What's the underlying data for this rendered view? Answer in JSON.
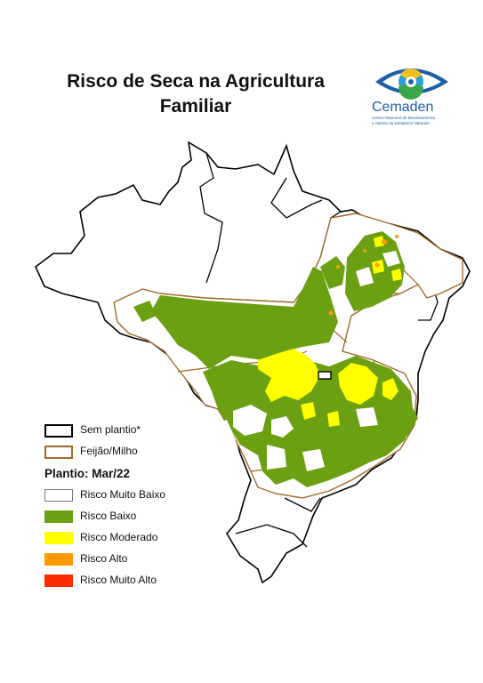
{
  "title_line1": "Risco de Seca na Agricultura",
  "title_line2": "Familiar",
  "logo": {
    "name": "Cemaden",
    "subtitle_line1": "Centro Nacional de Monitoramento",
    "subtitle_line2": "e Alertas de Desastres Naturais"
  },
  "legend": {
    "boundaries": [
      {
        "label": "Sem plantio*",
        "stroke": "#000000"
      },
      {
        "label": "Feijão/Milho",
        "stroke": "#a0692a"
      }
    ],
    "heading": "Plantio: Mar/22",
    "classes": [
      {
        "label": "Risco Muito Baixo",
        "color": "#ffffff"
      },
      {
        "label": "Risco Baixo",
        "color": "#6aa012"
      },
      {
        "label": "Risco Moderado",
        "color": "#ffff00"
      },
      {
        "label": "Risco Alto",
        "color": "#ff9900"
      },
      {
        "label": "Risco Muito Alto",
        "color": "#ff2a00"
      }
    ]
  },
  "colors": {
    "background": "#ffffff",
    "border_black": "#000000",
    "border_brown": "#a0692a",
    "low_risk": "#6aa012",
    "moderate_risk": "#ffff00",
    "high_risk": "#ff9900",
    "logo_blue": "#1f5fa8"
  }
}
